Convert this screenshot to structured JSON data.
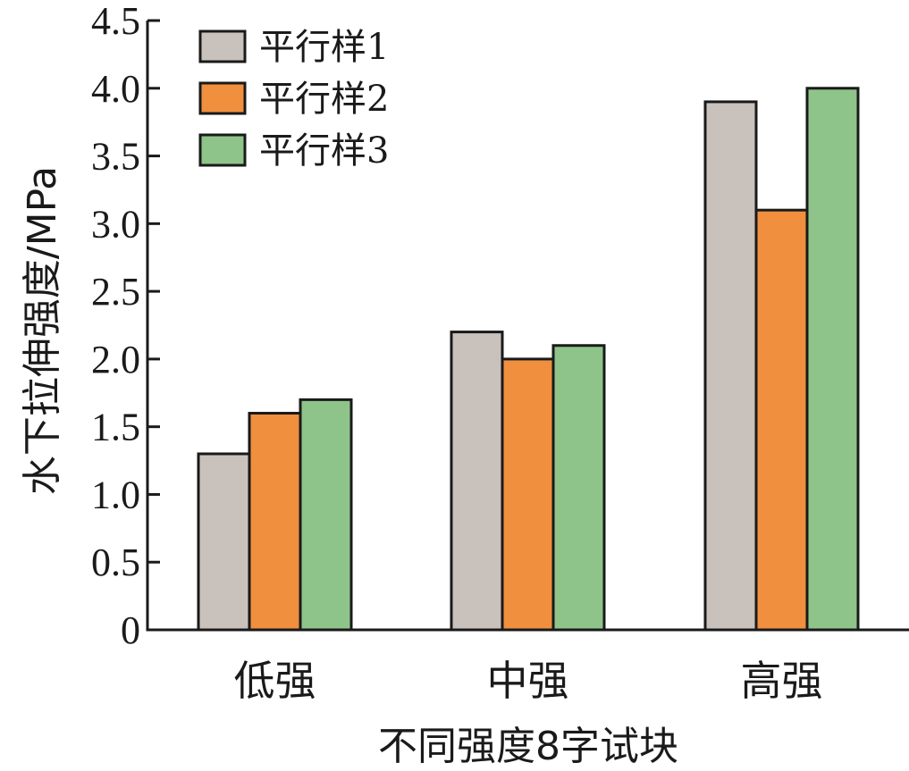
{
  "chart_data": {
    "type": "bar",
    "categories": [
      "低强",
      "中强",
      "高强"
    ],
    "series": [
      {
        "name": "平行样1",
        "color": "#c9c2bc",
        "values": [
          1.3,
          2.2,
          3.9
        ]
      },
      {
        "name": "平行样2",
        "color": "#f08f3e",
        "values": [
          1.6,
          2.0,
          3.1
        ]
      },
      {
        "name": "平行样3",
        "color": "#8ec489",
        "values": [
          1.7,
          2.1,
          4.0
        ]
      }
    ],
    "yticks": [
      "0",
      "0.5",
      "1.0",
      "1.5",
      "2.0",
      "2.5",
      "3.0",
      "3.5",
      "4.0",
      "4.5"
    ],
    "ylim": [
      0,
      4.5
    ],
    "xlabel": "不同强度8字试块",
    "ylabel": "水下拉伸强度/MPa",
    "legend": "top-left",
    "grid": false
  }
}
